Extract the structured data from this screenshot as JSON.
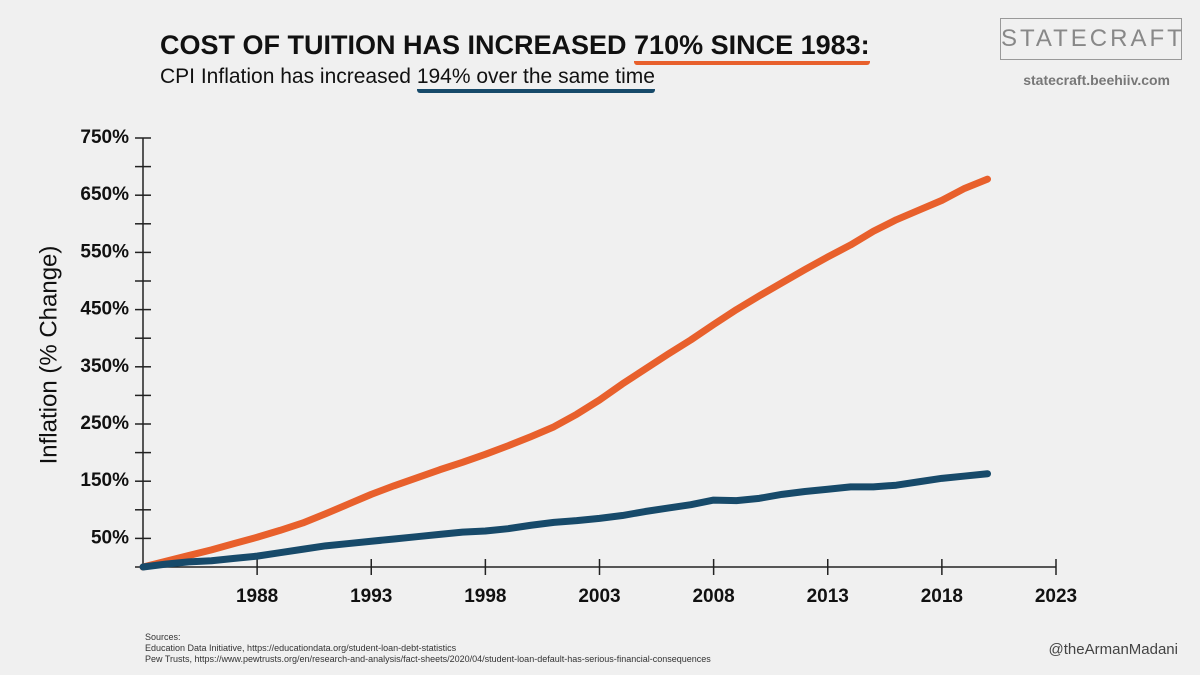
{
  "chart_data": {
    "type": "line",
    "title": [
      "COST OF TUITION HAS INCREASED ",
      "710% SINCE 1983:"
    ],
    "subtitle": [
      "CPI Inflation has increased ",
      "194% over the same time"
    ],
    "y_label": "Inflation (% Change)",
    "x": [
      1983,
      1984,
      1985,
      1986,
      1987,
      1988,
      1989,
      1990,
      1991,
      1992,
      1993,
      1994,
      1995,
      1996,
      1997,
      1998,
      1999,
      2000,
      2001,
      2002,
      2003,
      2004,
      2005,
      2006,
      2007,
      2008,
      2009,
      2010,
      2011,
      2012,
      2013,
      2014,
      2015,
      2016,
      2017,
      2018,
      2019,
      2020
    ],
    "series": [
      {
        "color": "#e8602c",
        "values": [
          0,
          10,
          20,
          30,
          41,
          52,
          64,
          77,
          93,
          110,
          127,
          142,
          156,
          170,
          183,
          197,
          212,
          228,
          245,
          267,
          292,
          320,
          346,
          372,
          397,
          424,
          450,
          474,
          497,
          520,
          542,
          563,
          587,
          607,
          624,
          641,
          662,
          678
        ]
      },
      {
        "color": "#174a6a",
        "values": [
          0,
          5,
          9,
          11,
          15,
          19,
          25,
          31,
          37,
          41,
          45,
          49,
          53,
          57,
          61,
          63,
          67,
          73,
          78,
          81,
          85,
          90,
          97,
          103,
          109,
          117,
          116,
          120,
          127,
          132,
          136,
          140,
          140,
          143,
          149,
          155,
          159,
          163
        ]
      }
    ],
    "xlim": [
      1983,
      2023
    ],
    "xticks": [
      1988,
      1993,
      1998,
      2003,
      2008,
      2013,
      2018,
      2023
    ],
    "ylim": [
      0,
      750
    ],
    "yticks": [
      {
        "value": 50,
        "label": "50%"
      },
      {
        "value": 150,
        "label": "150%"
      },
      {
        "value": 250,
        "label": "250%"
      },
      {
        "value": 350,
        "label": "350%"
      },
      {
        "value": 450,
        "label": "450%"
      },
      {
        "value": 550,
        "label": "550%"
      },
      {
        "value": 650,
        "label": "650%"
      },
      {
        "value": 750,
        "label": "750%"
      }
    ],
    "yminorticks": [
      0,
      100,
      200,
      300,
      400,
      500,
      600,
      700
    ]
  },
  "branding": {
    "logo": "STATECRAFT",
    "url": "statecraft.beehiiv.com",
    "handle": "@theArmanMadani"
  },
  "sources": [
    "Sources:",
    "Education Data Initiative, https://educationdata.org/student-loan-debt-statistics",
    "Pew Trusts, https://www.pewtrusts.org/en/research-and-analysis/fact-sheets/2020/04/student-loan-default-has-serious-financial-consequences"
  ]
}
